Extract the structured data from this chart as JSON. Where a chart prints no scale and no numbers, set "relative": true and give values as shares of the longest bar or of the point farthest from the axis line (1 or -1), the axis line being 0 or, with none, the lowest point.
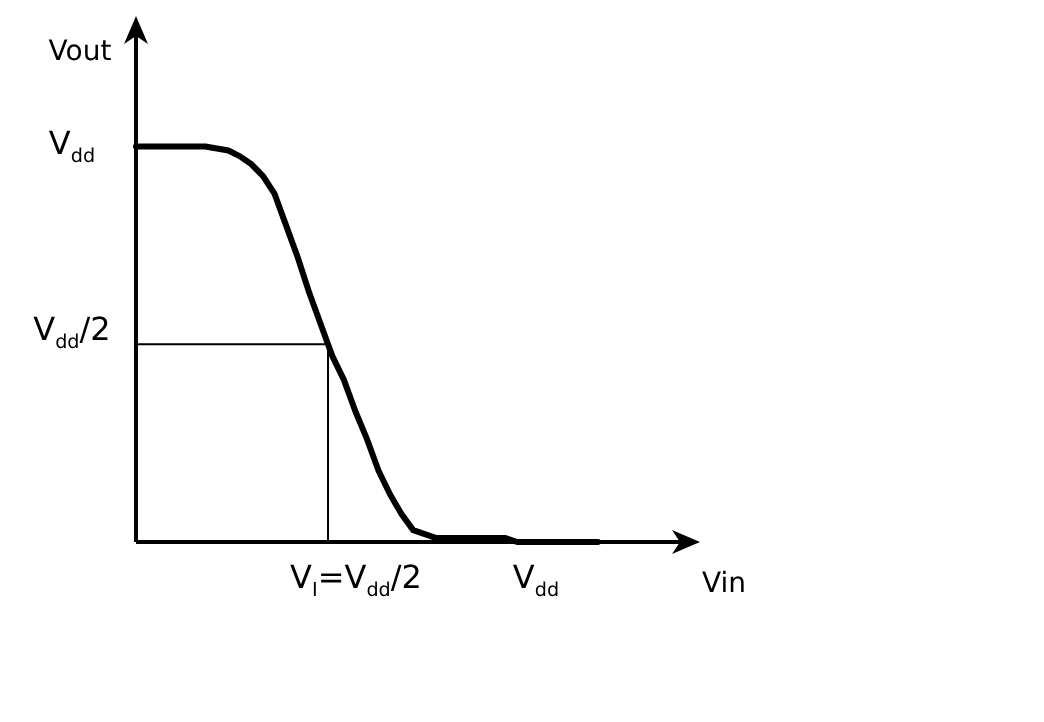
{
  "chart_data": {
    "type": "line",
    "xlabel": "Vin",
    "ylabel": "Vout",
    "relative": true,
    "annotations": [
      "V$_{dd}$",
      "V$_{dd}$/2",
      "V$_{I}$=V$_{dd}$/2",
      "V$_{dd}$"
    ],
    "ref_lines": [
      {
        "axis": "y",
        "value": 0.5,
        "color": "#000000"
      }
    ],
    "marker": "none",
    "line_style": "solid",
    "categories": [
      null,
      null,
      null,
      null,
      null,
      null,
      null,
      null,
      null,
      null,
      null,
      null,
      null,
      null,
      null,
      null,
      null,
      null,
      null,
      null,
      null,
      null,
      null,
      null,
      null,
      null,
      null,
      null,
      null,
      null,
      null,
      null,
      null,
      null,
      null,
      null,
      null,
      null,
      null,
      null,
      null
    ],
    "series": [
      {
        "color": "#000000",
        "values": [
          1,
          1,
          1,
          1,
          1,
          1,
          1,
          0.995,
          0.99,
          0.975,
          0.955,
          0.925,
          0.88,
          0.8,
          0.72,
          0.63,
          0.55,
          0.47,
          0.41,
          0.33,
          0.26,
          0.18,
          0.12,
          0.07,
          0.03,
          0.02,
          0.01,
          0.01,
          0.01,
          0.01,
          0.01,
          0.01,
          0.01,
          0,
          0,
          0,
          0,
          0,
          0,
          0,
          0
        ]
      }
    ]
  }
}
